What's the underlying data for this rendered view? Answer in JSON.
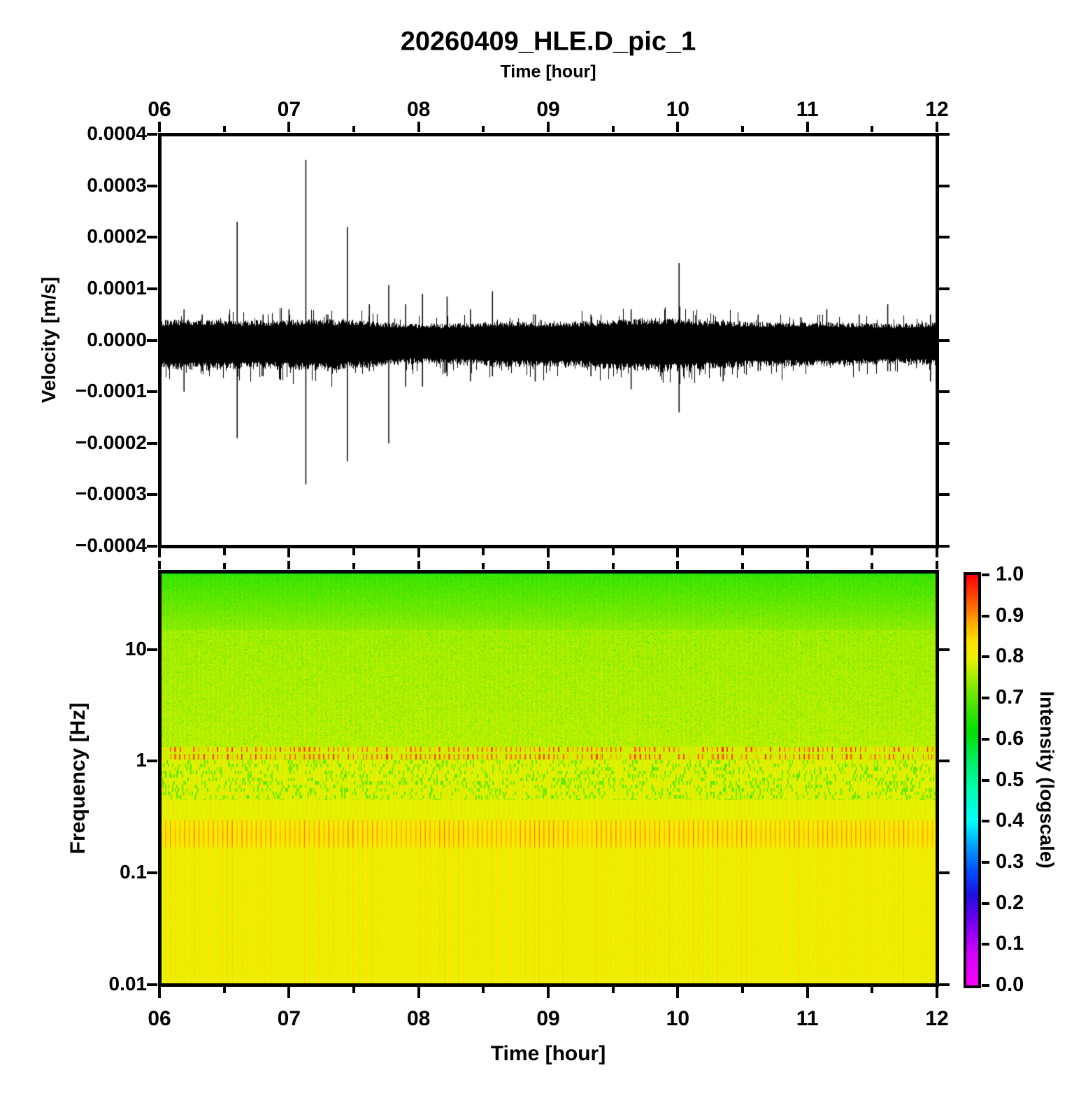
{
  "figure": {
    "title": "20260409_HLE.D_pic_1"
  },
  "waveform_panel": {
    "axis_title": "Time [hour]",
    "ylabel": "Velocity [m/s]",
    "x_tick_labels": [
      "06",
      "07",
      "08",
      "09",
      "10",
      "11",
      "12"
    ],
    "y_tick_labels": [
      "0.0004",
      "0.0003",
      "0.0002",
      "0.0001",
      "0.0000",
      "−0.0001",
      "−0.0002",
      "−0.0003",
      "−0.0004"
    ]
  },
  "spectrogram_panel": {
    "xlabel": "Time [hour]",
    "ylabel": "Frequency [Hz]",
    "x_tick_labels": [
      "06",
      "07",
      "08",
      "09",
      "10",
      "11",
      "12"
    ],
    "y_tick_labels": [
      "10",
      "1",
      "0.1",
      "0.01"
    ]
  },
  "colorbar": {
    "label": "Intensity (logscale)",
    "tick_labels": [
      "1.0",
      "0.9",
      "0.8",
      "0.7",
      "0.6",
      "0.5",
      "0.4",
      "0.3",
      "0.2",
      "0.1",
      "0.0"
    ]
  },
  "chart_data": [
    {
      "type": "line",
      "title": "20260409_HLE.D_pic_1",
      "xlabel": "Time [hour]",
      "ylabel": "Velocity [m/s]",
      "xlim": [
        6,
        12
      ],
      "ylim": [
        -0.0004,
        0.0004
      ],
      "x_tick_hours": [
        6,
        7,
        8,
        9,
        10,
        11,
        12
      ],
      "y_tick_step": 0.0001,
      "noise_band": {
        "upper_envelope": 2.8e-05,
        "lower_envelope": -4.2e-05
      },
      "spikes": [
        {
          "t": 6.19,
          "max": 6e-05,
          "min": -0.0001
        },
        {
          "t": 6.33,
          "max": 5e-05,
          "min": -6e-05
        },
        {
          "t": 6.6,
          "max": 0.00023,
          "min": -0.00019
        },
        {
          "t": 6.8,
          "max": 5e-05,
          "min": -7e-05
        },
        {
          "t": 7.0,
          "max": 6e-05,
          "min": -5e-05
        },
        {
          "t": 7.13,
          "max": 0.00035,
          "min": -0.00028
        },
        {
          "t": 7.3,
          "max": 5e-05,
          "min": -6e-05
        },
        {
          "t": 7.45,
          "max": 0.00022,
          "min": -0.000235
        },
        {
          "t": 7.62,
          "max": 7e-05,
          "min": -6e-05
        },
        {
          "t": 7.77,
          "max": 0.000107,
          "min": -0.0002
        },
        {
          "t": 7.9,
          "max": 7e-05,
          "min": -9e-05
        },
        {
          "t": 8.03,
          "max": 9e-05,
          "min": -9e-05
        },
        {
          "t": 8.22,
          "max": 8.5e-05,
          "min": -7e-05
        },
        {
          "t": 8.4,
          "max": 6e-05,
          "min": -8e-05
        },
        {
          "t": 8.57,
          "max": 9.5e-05,
          "min": -7e-05
        },
        {
          "t": 8.9,
          "max": 5e-05,
          "min": -8e-05
        },
        {
          "t": 9.33,
          "max": 5e-05,
          "min": -7e-05
        },
        {
          "t": 9.64,
          "max": 6e-05,
          "min": -9.5e-05
        },
        {
          "t": 10.01,
          "max": 0.00015,
          "min": -0.00014
        },
        {
          "t": 10.35,
          "max": 4e-05,
          "min": -8e-05
        },
        {
          "t": 10.62,
          "max": 5e-05,
          "min": -6e-05
        },
        {
          "t": 11.15,
          "max": 6e-05,
          "min": -5e-05
        },
        {
          "t": 11.4,
          "max": 5e-05,
          "min": -6e-05
        },
        {
          "t": 11.62,
          "max": 7e-05,
          "min": -6e-05
        },
        {
          "t": 11.95,
          "max": 5e-05,
          "min": -8e-05
        }
      ]
    },
    {
      "type": "heatmap",
      "xlabel": "Time [hour]",
      "ylabel": "Frequency [Hz]",
      "xlim": [
        6,
        12
      ],
      "ylim": [
        0.01,
        50
      ],
      "yscale": "log",
      "colorbar_label": "Intensity (logscale)",
      "colorbar_range": [
        0,
        1
      ],
      "colormap_stops": [
        [
          0.0,
          "#ff00ff"
        ],
        [
          0.08,
          "#d000ff"
        ],
        [
          0.16,
          "#7000f0"
        ],
        [
          0.22,
          "#2010e0"
        ],
        [
          0.28,
          "#0050ff"
        ],
        [
          0.34,
          "#00a0ff"
        ],
        [
          0.4,
          "#00ffff"
        ],
        [
          0.48,
          "#00ffb0"
        ],
        [
          0.55,
          "#00f060"
        ],
        [
          0.62,
          "#00e000"
        ],
        [
          0.7,
          "#60e800"
        ],
        [
          0.76,
          "#b0f000"
        ],
        [
          0.8,
          "#f0f000"
        ],
        [
          0.84,
          "#ffe000"
        ],
        [
          0.88,
          "#ffb000"
        ],
        [
          0.92,
          "#ff7000"
        ],
        [
          0.96,
          "#ff3800"
        ],
        [
          1.0,
          "#ff0000"
        ]
      ],
      "stripe_period_hours": 0.037,
      "bands": [
        {
          "freq_hz": [
            15,
            50
          ],
          "intensity": 0.7,
          "note": "green with fine speckle"
        },
        {
          "freq_hz": [
            1.35,
            15
          ],
          "intensity": 0.765,
          "note": "yellow-green with green flecks"
        },
        {
          "freq_hz": [
            1.05,
            1.35
          ],
          "intensity": 0.88,
          "note": "dotted orange-red band"
        },
        {
          "freq_hz": [
            0.45,
            1.05
          ],
          "intensity": 0.785,
          "note": "yellow with green vertical dashes"
        },
        {
          "freq_hz": [
            0.17,
            0.3
          ],
          "intensity": 0.86,
          "note": "strong orange-red vertical stripes"
        },
        {
          "freq_hz": [
            0.01,
            0.17
          ],
          "intensity": 0.81,
          "note": "yellow with orange vertical stripes"
        }
      ]
    }
  ]
}
